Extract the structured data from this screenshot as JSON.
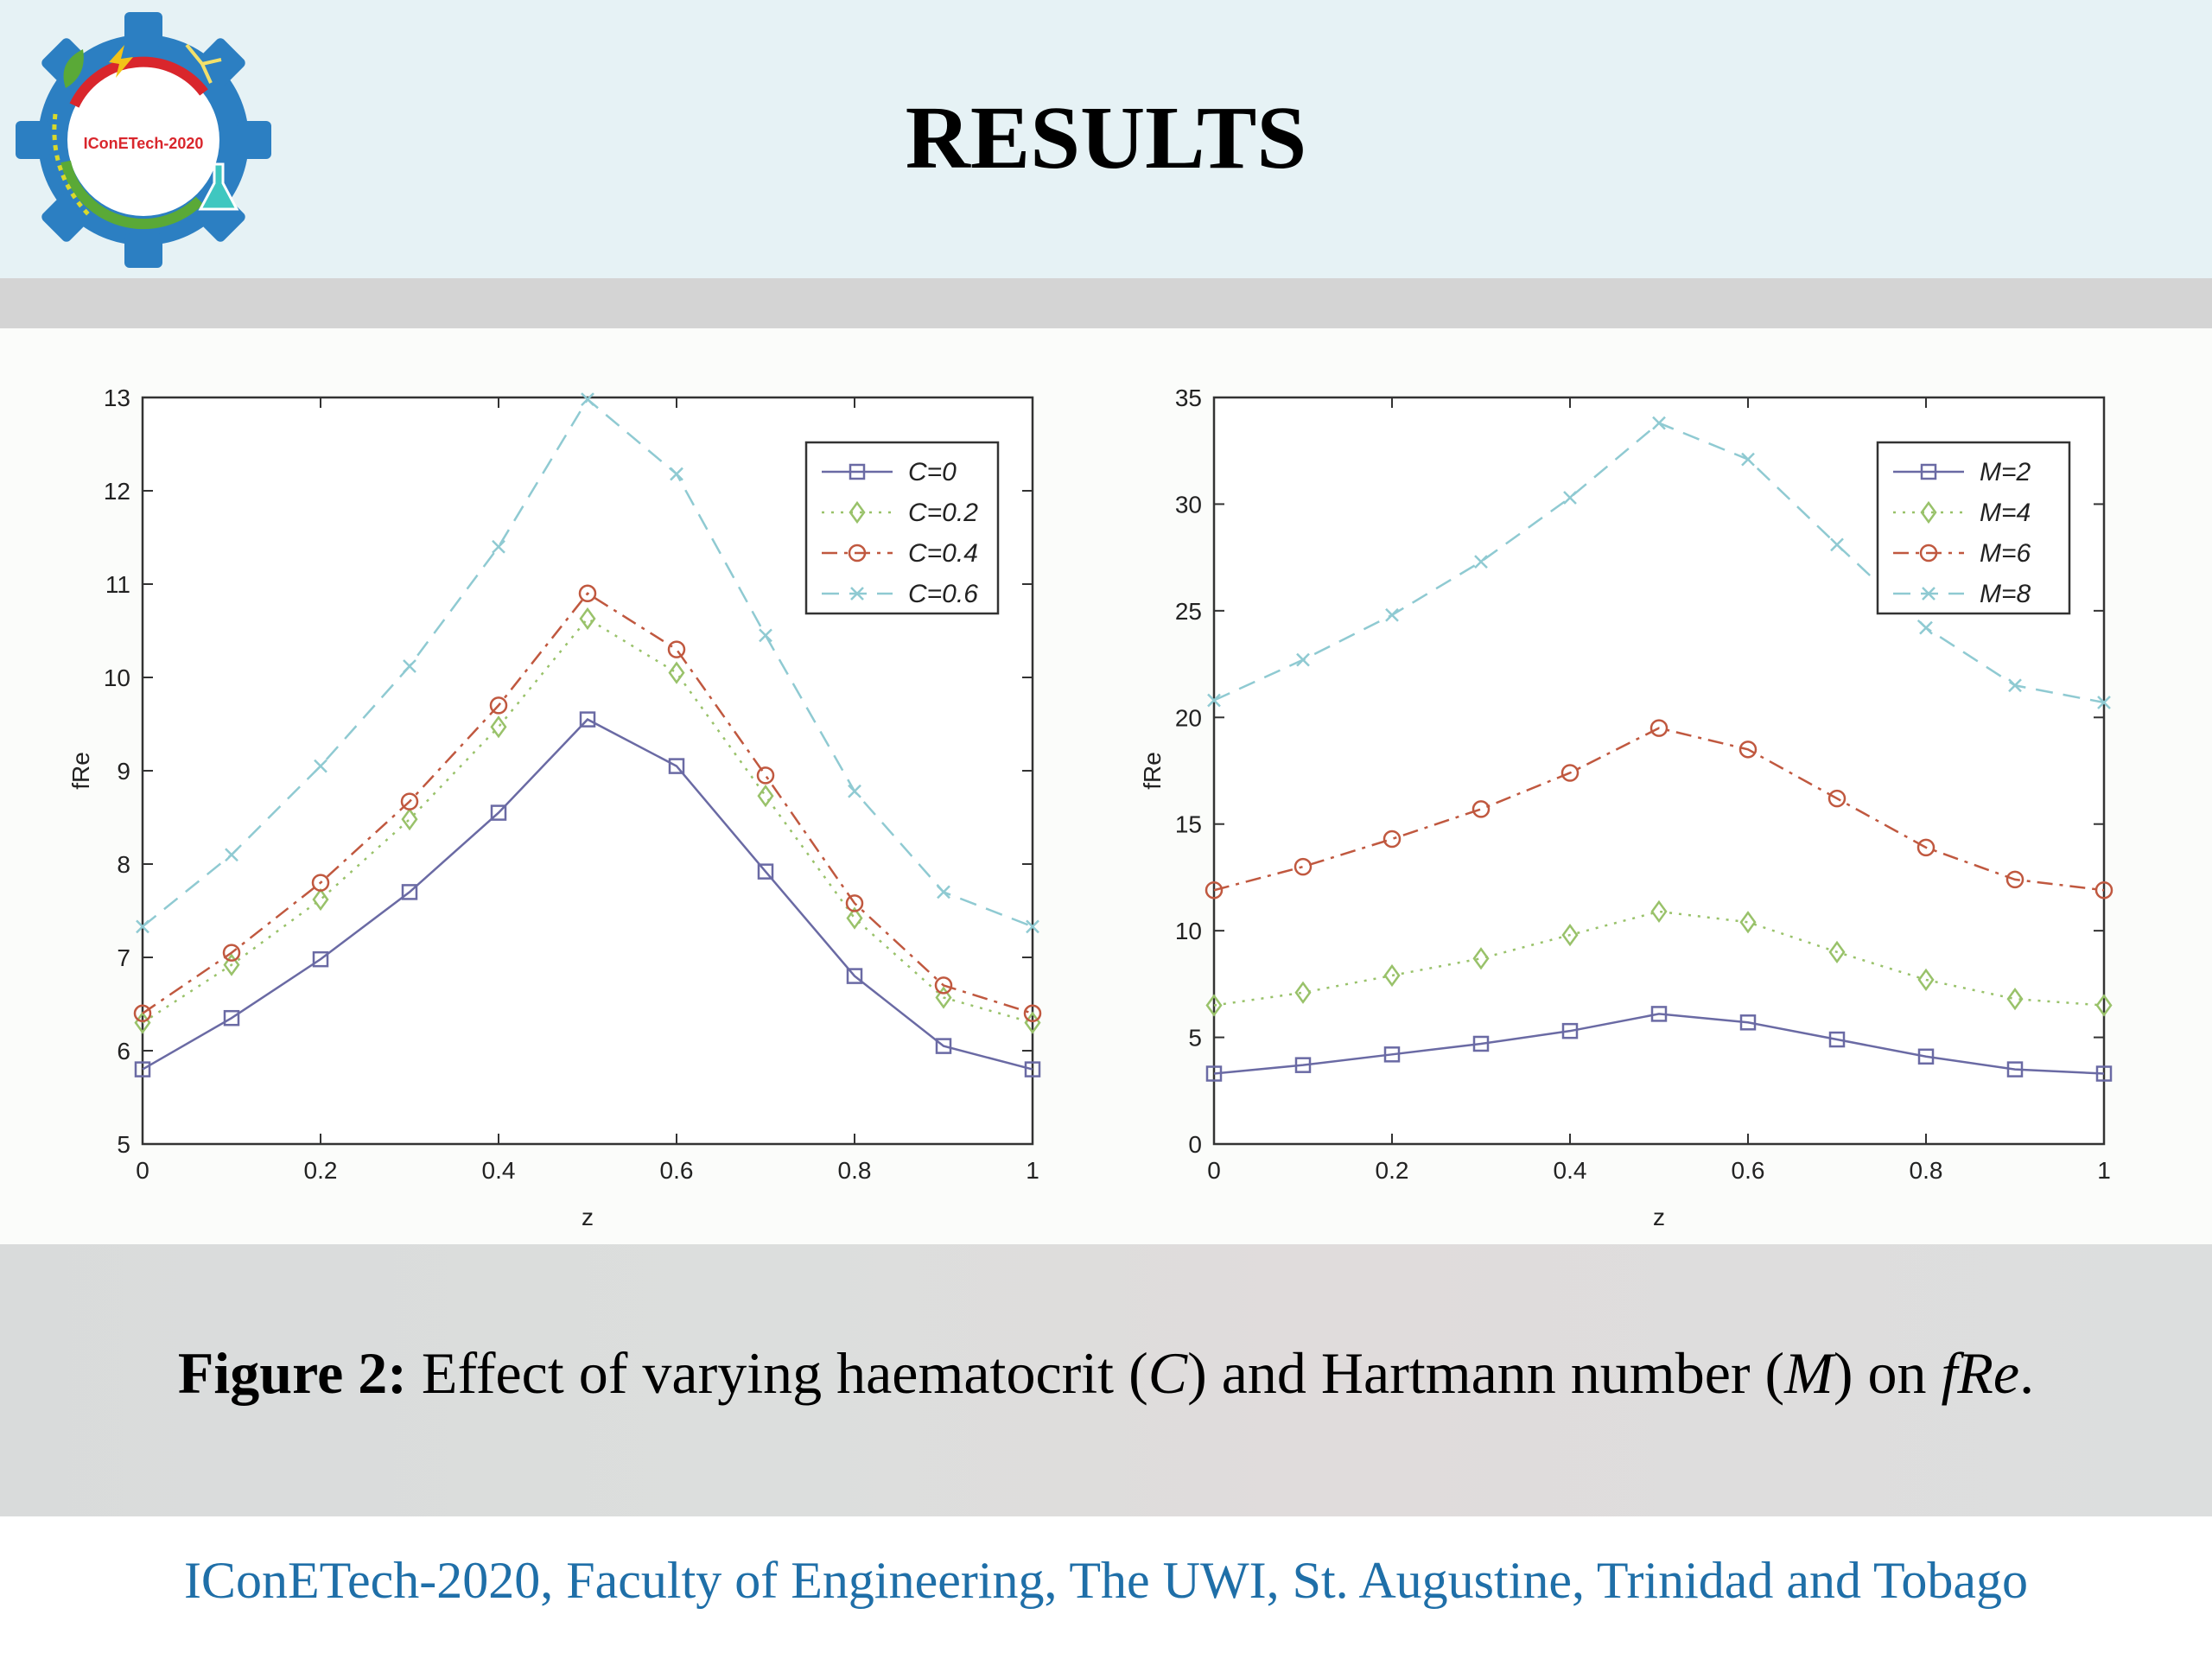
{
  "header": {
    "title": "RESULTS",
    "logo_text": "IConETech-2020"
  },
  "caption": {
    "prefix": "Figure 2:",
    "part1": " Effect of varying haematocrit (",
    "var1": "C",
    "part2": ") and Hartmann number (",
    "var2": "M",
    "part3": ") on ",
    "var3": "fRe",
    "part4": "."
  },
  "footer": {
    "text": "IConETech-2020, Faculty of Engineering, The UWI, St. Augustine, Trinidad and Tobago"
  },
  "colors": {
    "s1": "#6a6aa4",
    "s2": "#99c26a",
    "s3": "#c0583f",
    "s4": "#8fcad2",
    "caption_band": "#d9dbdb",
    "footer_text": "#1f6fa8"
  },
  "chart_data": [
    {
      "type": "line",
      "xlabel": "z",
      "ylabel": "fRe",
      "xlim": [
        0,
        1
      ],
      "ylim": [
        5,
        13
      ],
      "xticks": [
        "0",
        "0.2",
        "0.4",
        "0.6",
        "0.8",
        "1"
      ],
      "yticks": [
        "5",
        "6",
        "7",
        "8",
        "9",
        "10",
        "11",
        "12",
        "13"
      ],
      "legend_position": "top-right",
      "x": [
        0,
        0.1,
        0.2,
        0.3,
        0.4,
        0.5,
        0.6,
        0.7,
        0.8,
        0.9,
        1.0
      ],
      "series": [
        {
          "name": "C=0",
          "marker": "square",
          "style": "solid",
          "values": [
            5.8,
            6.35,
            6.98,
            7.7,
            8.55,
            9.55,
            9.05,
            7.92,
            6.8,
            6.05,
            5.8
          ]
        },
        {
          "name": "C=0.2",
          "marker": "diamond",
          "style": "dotted",
          "values": [
            6.3,
            6.92,
            7.62,
            8.48,
            9.47,
            10.63,
            10.05,
            8.73,
            7.42,
            6.57,
            6.3
          ]
        },
        {
          "name": "C=0.4",
          "marker": "circle",
          "style": "dashdot",
          "values": [
            6.4,
            7.05,
            7.8,
            8.67,
            9.7,
            10.9,
            10.3,
            8.95,
            7.58,
            6.7,
            6.4
          ]
        },
        {
          "name": "C=0.6",
          "marker": "x",
          "style": "dashed",
          "values": [
            7.33,
            8.1,
            9.05,
            10.12,
            11.4,
            12.98,
            12.18,
            10.45,
            8.78,
            7.7,
            7.33
          ]
        }
      ]
    },
    {
      "type": "line",
      "xlabel": "z",
      "ylabel": "fRe",
      "xlim": [
        0,
        1
      ],
      "ylim": [
        0,
        35
      ],
      "xticks": [
        "0",
        "0.2",
        "0.4",
        "0.6",
        "0.8",
        "1"
      ],
      "yticks": [
        "0",
        "5",
        "10",
        "15",
        "20",
        "25",
        "30",
        "35"
      ],
      "legend_position": "top-right",
      "x": [
        0,
        0.1,
        0.2,
        0.3,
        0.4,
        0.5,
        0.6,
        0.7,
        0.8,
        0.9,
        1.0
      ],
      "series": [
        {
          "name": "M=2",
          "marker": "square",
          "style": "solid",
          "values": [
            3.3,
            3.7,
            4.2,
            4.7,
            5.3,
            6.1,
            5.7,
            4.9,
            4.1,
            3.5,
            3.3
          ]
        },
        {
          "name": "M=4",
          "marker": "diamond",
          "style": "dotted",
          "values": [
            6.5,
            7.1,
            7.9,
            8.7,
            9.8,
            10.9,
            10.4,
            9.0,
            7.7,
            6.8,
            6.5
          ]
        },
        {
          "name": "M=6",
          "marker": "circle",
          "style": "dashdot",
          "values": [
            11.9,
            13.0,
            14.3,
            15.7,
            17.4,
            19.5,
            18.5,
            16.2,
            13.9,
            12.4,
            11.9
          ]
        },
        {
          "name": "M=8",
          "marker": "x",
          "style": "dashed",
          "values": [
            20.8,
            22.7,
            24.8,
            27.3,
            30.3,
            33.8,
            32.1,
            28.1,
            24.2,
            21.5,
            20.7
          ]
        }
      ]
    }
  ]
}
